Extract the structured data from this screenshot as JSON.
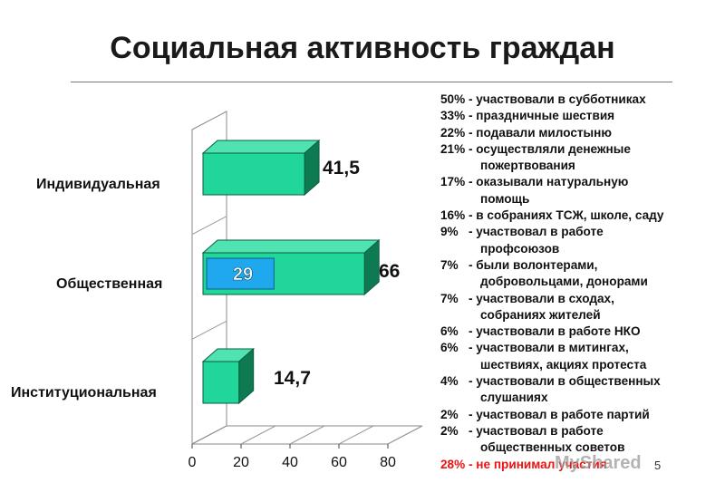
{
  "title": "Социальная активность граждан",
  "chart_data": {
    "type": "bar",
    "orientation": "horizontal",
    "categories": [
      "Индивидуальная",
      "Общественная",
      "Институциональная"
    ],
    "values": [
      41.5,
      66,
      14.7
    ],
    "value_labels": [
      "41,5",
      "66",
      "14,7"
    ],
    "inner_segment": {
      "category": "Общественная",
      "value": 29,
      "label": "29"
    },
    "xlim": [
      0,
      80
    ],
    "xticks": [
      "0",
      "20",
      "40",
      "60",
      "80"
    ],
    "grid": true,
    "colors": {
      "bar": "#20d69a",
      "bar_top": "#4ee3b0",
      "bar_side": "#0d7a52",
      "inner": "#20a8ee",
      "inner_label": "#ffffff"
    }
  },
  "legend": [
    {
      "pct": "50% - ",
      "text": "участвовали в субботниках"
    },
    {
      "pct": "33% - ",
      "text": "праздничные шествия"
    },
    {
      "pct": "22% - ",
      "text": "подавали милостыню"
    },
    {
      "pct": "21% - ",
      "text": "осуществляли денежные",
      "cont": "пожертвования"
    },
    {
      "pct": "17% - ",
      "text": "оказывали натуральную",
      "cont": "помощь"
    },
    {
      "pct": "16% - ",
      "text": "в собраниях ТСЖ, школе, саду"
    },
    {
      "pct": "9%   - ",
      "text": "участвовал в работе",
      "cont": "профсоюзов"
    },
    {
      "pct": "7%   - ",
      "text": "были волонтерами,",
      "cont": "добровольцами, донорами"
    },
    {
      "pct": "7%   - ",
      "text": "участвовали в сходах,",
      "cont": "собраниях жителей"
    },
    {
      "pct": "6%   - ",
      "text": "участвовали в работе НКО"
    },
    {
      "pct": "6%   - ",
      "text": "участвовали в митингах,",
      "cont": "шествиях, акциях протеста"
    },
    {
      "pct": "4%   - ",
      "text": "участвовали в общественных",
      "cont": "слушаниях"
    },
    {
      "pct": "2%   - ",
      "text": "участвовал в работе партий"
    },
    {
      "pct": "2%   - ",
      "text": "участвовал в работе",
      "cont": "общественных советов"
    },
    {
      "pct": "28% - ",
      "text": "не принимал участия",
      "highlight": "#ee1111"
    }
  ],
  "watermark": "MyShared",
  "page_number": "5"
}
